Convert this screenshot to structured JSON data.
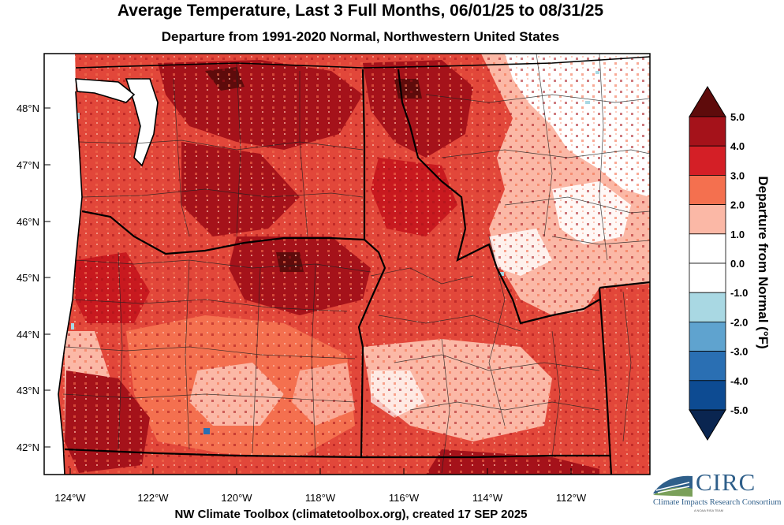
{
  "title": "Average Temperature, Last 3 Full Months, 06/01/25 to 08/31/25",
  "subtitle": "Departure from 1991-2020 Normal, Northwestern United States",
  "footer": "NW Climate Toolbox (climatetoolbox.org), created 17 SEP 2025",
  "latitudes": [
    "48°N",
    "47°N",
    "46°N",
    "45°N",
    "44°N",
    "43°N",
    "42°N"
  ],
  "longitudes": [
    "124°W",
    "122°W",
    "120°W",
    "118°W",
    "116°W",
    "114°W",
    "112°W"
  ],
  "colorbar": {
    "title": "Departure from Normal (°F)",
    "ticks": [
      "5.0",
      "4.0",
      "3.0",
      "2.0",
      "1.0",
      "0.0",
      "-1.0",
      "-2.0",
      "-3.0",
      "-4.0",
      "-5.0"
    ],
    "colors": [
      "#5e0b0b",
      "#a5121a",
      "#d41f26",
      "#f4704f",
      "#fbb8a6",
      "#ffffff",
      "#ffffff",
      "#a9d8e3",
      "#5fa3cf",
      "#2a6fb3",
      "#0d4b92",
      "#0a2550"
    ]
  },
  "logo": {
    "name": "CIRC",
    "full_name": "Climate Impacts Research Consortium",
    "tag": "A NOAA RISA TEAM"
  }
}
